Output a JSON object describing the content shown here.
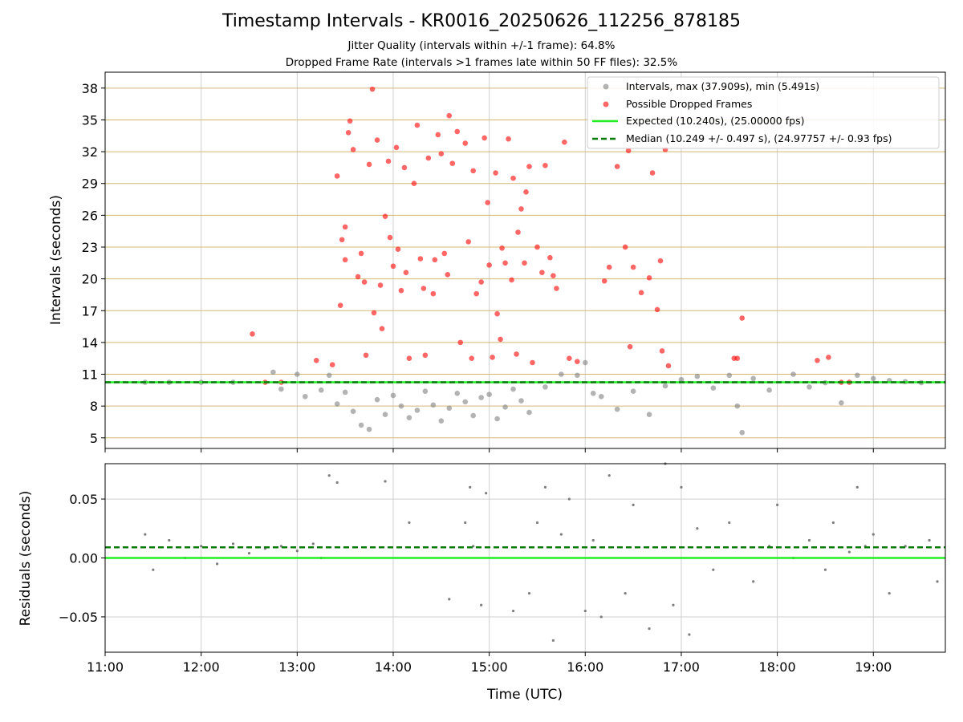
{
  "title": "Timestamp Intervals - KR0016_20250626_112256_878185",
  "subtitle_1": "Jitter Quality (intervals within +/-1 frame): 64.8%",
  "subtitle_2": "Dropped Frame Rate (intervals >1 frames late within 50 FF files): 32.5%",
  "colors": {
    "intervals": "#808080",
    "dropped": "#ff0000",
    "expected": "#22ee22",
    "median": "#0a7a0a",
    "ygrid_top": "#d4b870",
    "grid": "#cfcfcf"
  },
  "chart_data": [
    {
      "type": "scatter",
      "panel": "top",
      "ylabel": "Intervals (seconds)",
      "xlabel": "",
      "xlim": [
        "11:00",
        "19:45"
      ],
      "ylim": [
        4,
        39.5
      ],
      "yticks": [
        "38",
        "35",
        "32",
        "29",
        "26",
        "23",
        "20",
        "17",
        "14",
        "11",
        "8",
        "5"
      ],
      "xticks": [
        "11:00",
        "12:00",
        "13:00",
        "14:00",
        "15:00",
        "16:00",
        "17:00",
        "18:00",
        "19:00"
      ],
      "grid": true,
      "legend_position": "top-right",
      "legend": [
        "Intervals, max (37.909s), min (5.491s)",
        "Possible Dropped Frames",
        "Expected (10.240s), (25.00000 fps)",
        "Median (10.249 +/- 0.497 s), (24.97757 +/- 0.93 fps)"
      ],
      "expected_interval": 10.24,
      "median_interval": 10.249,
      "max_interval": 37.909,
      "min_interval": 5.491,
      "series": [
        {
          "name": "Intervals, max (37.909s), min (5.491s)",
          "style": "scatter",
          "color": "#808080",
          "points": [
            [
              "11:25",
              10.24
            ],
            [
              "11:40",
              10.24
            ],
            [
              "12:00",
              10.24
            ],
            [
              "12:20",
              10.24
            ],
            [
              "12:45",
              11.2
            ],
            [
              "12:50",
              9.6
            ],
            [
              "13:00",
              11.0
            ],
            [
              "13:05",
              8.9
            ],
            [
              "13:15",
              9.5
            ],
            [
              "13:20",
              10.9
            ],
            [
              "13:25",
              8.2
            ],
            [
              "13:30",
              9.3
            ],
            [
              "13:35",
              7.5
            ],
            [
              "13:40",
              6.2
            ],
            [
              "13:45",
              5.8
            ],
            [
              "13:50",
              8.6
            ],
            [
              "13:55",
              7.2
            ],
            [
              "14:00",
              9.0
            ],
            [
              "14:05",
              8.0
            ],
            [
              "14:10",
              6.9
            ],
            [
              "14:15",
              7.6
            ],
            [
              "14:20",
              9.4
            ],
            [
              "14:25",
              8.1
            ],
            [
              "14:30",
              6.6
            ],
            [
              "14:35",
              7.8
            ],
            [
              "14:40",
              9.2
            ],
            [
              "14:45",
              8.4
            ],
            [
              "14:50",
              7.1
            ],
            [
              "14:55",
              8.8
            ],
            [
              "15:00",
              9.1
            ],
            [
              "15:05",
              6.8
            ],
            [
              "15:10",
              7.9
            ],
            [
              "15:15",
              9.6
            ],
            [
              "15:20",
              8.5
            ],
            [
              "15:25",
              7.4
            ],
            [
              "15:35",
              9.8
            ],
            [
              "15:45",
              11.0
            ],
            [
              "15:55",
              10.9
            ],
            [
              "16:00",
              12.1
            ],
            [
              "16:05",
              9.2
            ],
            [
              "16:10",
              8.9
            ],
            [
              "16:20",
              7.7
            ],
            [
              "16:30",
              9.4
            ],
            [
              "16:40",
              7.2
            ],
            [
              "16:50",
              9.9
            ],
            [
              "17:00",
              10.5
            ],
            [
              "17:10",
              10.8
            ],
            [
              "17:20",
              9.7
            ],
            [
              "17:30",
              10.9
            ],
            [
              "17:35",
              8.0
            ],
            [
              "17:38",
              5.5
            ],
            [
              "17:45",
              10.6
            ],
            [
              "17:55",
              9.5
            ],
            [
              "18:10",
              11.0
            ],
            [
              "18:20",
              9.8
            ],
            [
              "18:30",
              10.2
            ],
            [
              "18:40",
              8.3
            ],
            [
              "18:50",
              10.9
            ],
            [
              "19:00",
              10.6
            ],
            [
              "19:10",
              10.4
            ],
            [
              "19:20",
              10.3
            ],
            [
              "19:30",
              10.2
            ]
          ]
        },
        {
          "name": "Possible Dropped Frames",
          "style": "scatter",
          "color": "#ff0000",
          "points": [
            [
              "12:32",
              14.8
            ],
            [
              "12:40",
              10.24
            ],
            [
              "12:50",
              10.24
            ],
            [
              "13:12",
              12.3
            ],
            [
              "13:22",
              11.9
            ],
            [
              "13:25",
              29.7
            ],
            [
              "13:27",
              17.5
            ],
            [
              "13:28",
              23.7
            ],
            [
              "13:30",
              24.9
            ],
            [
              "13:30",
              21.8
            ],
            [
              "13:32",
              33.8
            ],
            [
              "13:33",
              34.9
            ],
            [
              "13:35",
              32.2
            ],
            [
              "13:38",
              20.2
            ],
            [
              "13:40",
              22.4
            ],
            [
              "13:42",
              19.7
            ],
            [
              "13:43",
              12.8
            ],
            [
              "13:45",
              30.8
            ],
            [
              "13:47",
              37.9
            ],
            [
              "13:48",
              16.8
            ],
            [
              "13:50",
              33.1
            ],
            [
              "13:52",
              19.4
            ],
            [
              "13:53",
              15.3
            ],
            [
              "13:55",
              25.9
            ],
            [
              "13:57",
              31.1
            ],
            [
              "13:58",
              23.9
            ],
            [
              "14:00",
              21.2
            ],
            [
              "14:02",
              32.4
            ],
            [
              "14:03",
              22.8
            ],
            [
              "14:05",
              18.9
            ],
            [
              "14:07",
              30.5
            ],
            [
              "14:08",
              20.6
            ],
            [
              "14:10",
              12.5
            ],
            [
              "14:13",
              29.0
            ],
            [
              "14:15",
              34.5
            ],
            [
              "14:17",
              21.9
            ],
            [
              "14:19",
              19.1
            ],
            [
              "14:20",
              12.8
            ],
            [
              "14:22",
              31.4
            ],
            [
              "14:25",
              18.6
            ],
            [
              "14:26",
              21.8
            ],
            [
              "14:28",
              33.6
            ],
            [
              "14:30",
              31.8
            ],
            [
              "14:32",
              22.4
            ],
            [
              "14:34",
              20.4
            ],
            [
              "14:35",
              35.4
            ],
            [
              "14:37",
              30.9
            ],
            [
              "14:40",
              33.9
            ],
            [
              "14:42",
              14.0
            ],
            [
              "14:45",
              32.8
            ],
            [
              "14:47",
              23.5
            ],
            [
              "14:49",
              12.5
            ],
            [
              "14:50",
              30.2
            ],
            [
              "14:52",
              18.6
            ],
            [
              "14:55",
              19.7
            ],
            [
              "14:57",
              33.3
            ],
            [
              "14:59",
              27.2
            ],
            [
              "15:00",
              21.3
            ],
            [
              "15:02",
              12.6
            ],
            [
              "15:04",
              30.0
            ],
            [
              "15:05",
              16.7
            ],
            [
              "15:07",
              14.3
            ],
            [
              "15:08",
              22.9
            ],
            [
              "15:10",
              21.5
            ],
            [
              "15:12",
              33.2
            ],
            [
              "15:14",
              19.9
            ],
            [
              "15:15",
              29.5
            ],
            [
              "15:17",
              12.9
            ],
            [
              "15:18",
              24.4
            ],
            [
              "15:20",
              26.6
            ],
            [
              "15:22",
              21.5
            ],
            [
              "15:23",
              28.2
            ],
            [
              "15:25",
              30.6
            ],
            [
              "15:27",
              12.1
            ],
            [
              "15:30",
              23.0
            ],
            [
              "15:33",
              20.6
            ],
            [
              "15:35",
              30.7
            ],
            [
              "15:38",
              22.0
            ],
            [
              "15:40",
              20.3
            ],
            [
              "15:42",
              19.1
            ],
            [
              "15:47",
              32.9
            ],
            [
              "15:50",
              12.5
            ],
            [
              "15:55",
              12.2
            ],
            [
              "16:12",
              19.8
            ],
            [
              "16:15",
              21.1
            ],
            [
              "16:20",
              30.6
            ],
            [
              "16:25",
              23.0
            ],
            [
              "16:27",
              32.1
            ],
            [
              "16:28",
              13.6
            ],
            [
              "16:30",
              21.1
            ],
            [
              "16:35",
              18.7
            ],
            [
              "16:40",
              20.1
            ],
            [
              "16:42",
              30.0
            ],
            [
              "16:45",
              17.1
            ],
            [
              "16:47",
              21.7
            ],
            [
              "16:48",
              13.2
            ],
            [
              "16:50",
              32.2
            ],
            [
              "16:52",
              11.8
            ],
            [
              "17:38",
              16.3
            ],
            [
              "17:33",
              12.5
            ],
            [
              "17:35",
              12.5
            ],
            [
              "18:25",
              12.3
            ],
            [
              "18:32",
              12.6
            ],
            [
              "18:40",
              10.24
            ],
            [
              "18:45",
              10.24
            ]
          ]
        },
        {
          "name": "Expected (10.240s), (25.00000 fps)",
          "style": "hline",
          "value": 10.24,
          "color": "#22ee22"
        },
        {
          "name": "Median (10.249 +/- 0.497 s), (24.97757 +/- 0.93 fps)",
          "style": "dashed-hline",
          "value": 10.249,
          "color": "#0a7a0a"
        }
      ]
    },
    {
      "type": "scatter",
      "panel": "bottom",
      "ylabel": "Residuals (seconds)",
      "xlabel": "Time (UTC)",
      "xlim": [
        "11:00",
        "19:45"
      ],
      "ylim": [
        -0.08,
        0.08
      ],
      "yticks": [
        "0.05",
        "0.00",
        "−0.05"
      ],
      "xticks": [
        "11:00",
        "12:00",
        "13:00",
        "14:00",
        "15:00",
        "16:00",
        "17:00",
        "18:00",
        "19:00"
      ],
      "grid": true,
      "series": [
        {
          "name": "",
          "style": "scatter",
          "color": "#707070",
          "points": [
            [
              "11:25",
              0.02
            ],
            [
              "11:30",
              -0.01
            ],
            [
              "11:40",
              0.015
            ],
            [
              "11:50",
              0.0
            ],
            [
              "12:00",
              0.01
            ],
            [
              "12:10",
              -0.005
            ],
            [
              "12:20",
              0.012
            ],
            [
              "12:30",
              0.004
            ],
            [
              "12:40",
              0.008
            ],
            [
              "12:50",
              0.01
            ],
            [
              "13:00",
              0.006
            ],
            [
              "13:10",
              0.012
            ],
            [
              "13:15",
              0.0
            ],
            [
              "13:20",
              0.07
            ],
            [
              "13:25",
              0.064
            ],
            [
              "13:55",
              0.065
            ],
            [
              "14:10",
              0.03
            ],
            [
              "14:35",
              -0.035
            ],
            [
              "14:45",
              0.03
            ],
            [
              "14:48",
              0.06
            ],
            [
              "14:50",
              0.01
            ],
            [
              "14:55",
              -0.04
            ],
            [
              "14:58",
              0.055
            ],
            [
              "15:15",
              -0.045
            ],
            [
              "15:25",
              -0.03
            ],
            [
              "15:30",
              0.03
            ],
            [
              "15:35",
              0.06
            ],
            [
              "15:40",
              -0.07
            ],
            [
              "15:45",
              0.02
            ],
            [
              "15:50",
              0.05
            ],
            [
              "16:00",
              -0.045
            ],
            [
              "16:05",
              0.015
            ],
            [
              "16:10",
              -0.05
            ],
            [
              "16:15",
              0.07
            ],
            [
              "16:25",
              -0.03
            ],
            [
              "16:30",
              0.045
            ],
            [
              "16:40",
              -0.06
            ],
            [
              "16:50",
              0.08
            ],
            [
              "16:55",
              -0.04
            ],
            [
              "17:00",
              0.06
            ],
            [
              "17:05",
              -0.065
            ],
            [
              "17:10",
              0.025
            ],
            [
              "17:20",
              -0.01
            ],
            [
              "17:30",
              0.03
            ],
            [
              "17:45",
              -0.02
            ],
            [
              "17:55",
              0.01
            ],
            [
              "18:00",
              0.045
            ],
            [
              "18:10",
              0.0
            ],
            [
              "18:20",
              0.015
            ],
            [
              "18:30",
              -0.01
            ],
            [
              "18:35",
              0.03
            ],
            [
              "18:45",
              0.005
            ],
            [
              "18:50",
              0.06
            ],
            [
              "18:55",
              0.01
            ],
            [
              "19:00",
              0.02
            ],
            [
              "19:10",
              -0.03
            ],
            [
              "19:20",
              0.01
            ],
            [
              "19:35",
              0.015
            ],
            [
              "19:40",
              -0.02
            ]
          ]
        },
        {
          "name": "",
          "style": "hline",
          "value": 0.0,
          "color": "#22ee22"
        },
        {
          "name": "",
          "style": "dashed-hline",
          "value": 0.009,
          "color": "#0a7a0a"
        }
      ]
    }
  ]
}
